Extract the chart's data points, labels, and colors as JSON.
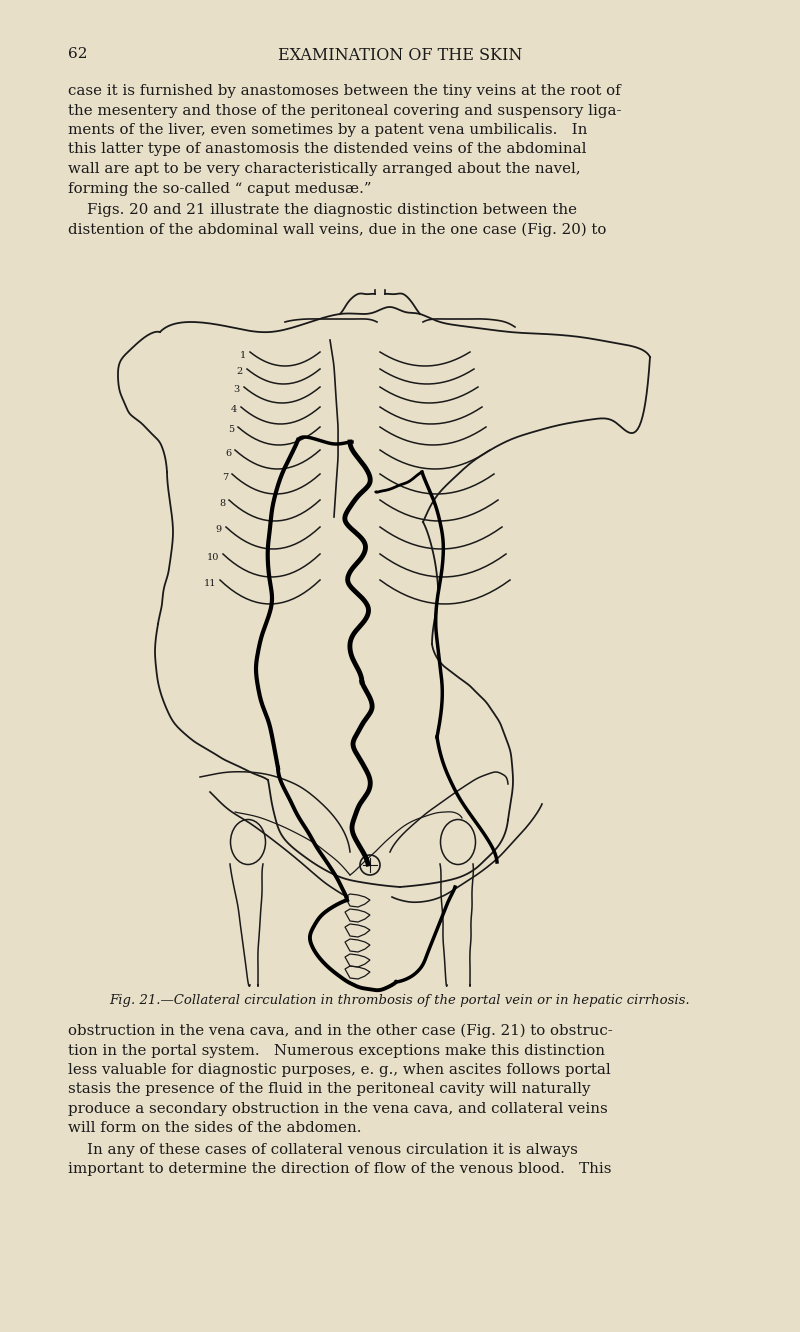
{
  "background_color": "#e8dfc8",
  "page_number": "62",
  "header": "EXAMINATION OF THE SKIN",
  "figure_caption": "Fig. 21.—Collateral circulation in thrombosis of the portal vein or in hepatic cirrhosis.",
  "text_color": "#1a1a1a",
  "line_color": "#1a1a1a",
  "p1_lines": [
    "case it is furnished by anastomoses between the tiny veins at the root of",
    "the mesentery and those of the peritoneal covering and suspensory liga­",
    "ments of the liver, even sometimes by a patent vena umbilicalis.   In",
    "this latter type of anastomosis the distended veins of the abdominal",
    "wall are apt to be very characteristically arranged about the navel,",
    "forming the so-called “ caput medusæ.”"
  ],
  "p2_lines": [
    "    Figs. 20 and 21 illustrate the diagnostic distinction between the",
    "distention of the abdominal wall veins, due in the one case (Fig. 20) to"
  ],
  "p3_lines": [
    "obstruction in the vena cava, and in the other case (Fig. 21) to obstruc-",
    "tion in the portal system.   Numerous exceptions make this distinction",
    "less valuable for diagnostic purposes, e. g., when ascites follows portal",
    "stasis the presence of the fluid in the peritoneal cavity will naturally",
    "produce a secondary obstruction in the vena cava, and collateral veins",
    "will form on the sides of the abdomen."
  ],
  "p4_lines": [
    "    In any of these cases of collateral venous circulation it is always",
    "important to determine the direction of flow of the venous blood.   This"
  ],
  "rib_tops_y": [
    980,
    963,
    945,
    925,
    905,
    882,
    858,
    832,
    805,
    778,
    752
  ],
  "rib_labels": [
    "1",
    "2",
    "3",
    "4",
    "5",
    "6",
    "7",
    "8",
    "9",
    "10",
    "11"
  ]
}
